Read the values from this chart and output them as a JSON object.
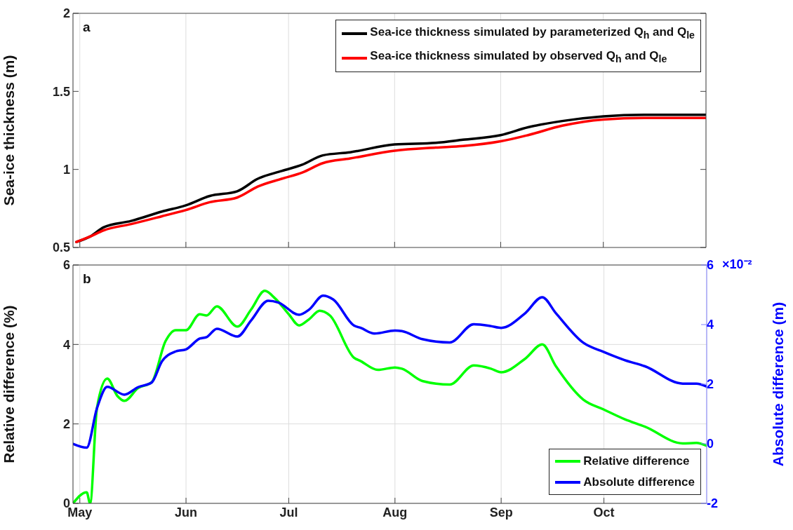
{
  "chart_data": [
    {
      "type": "line",
      "ylabel": "Sea-ice thickness (m)",
      "annotations": [
        "a"
      ],
      "xlim": [
        "--04-29",
        "--10-31"
      ],
      "xticks": [
        {
          "value": "--05-01",
          "label": null
        },
        {
          "value": "--06-01",
          "label": null
        },
        {
          "value": "--07-01",
          "label": null
        },
        {
          "value": "--08-01",
          "label": null
        },
        {
          "value": "--09-01",
          "label": null
        },
        {
          "value": "--10-01",
          "label": null
        }
      ],
      "ylim": [
        0.5,
        2
      ],
      "yticks": [
        0.5,
        1,
        1.5,
        2
      ],
      "grid": "x",
      "legend": "top right",
      "tick_labels": "y",
      "series": [
        {
          "name": "Sea-ice thickness simulated by parameterized Q$_{h}$ and Q$_{le}$",
          "color": "#000000",
          "x": [
            "--04-30",
            "--05-04",
            "--05-08",
            "--05-16",
            "--05-25",
            "--06-01",
            "--06-08",
            "--06-16",
            "--06-22",
            "--06-29",
            "--07-05",
            "--07-11",
            "--07-19",
            "--08-01",
            "--08-13",
            "--08-21",
            "--09-01",
            "--09-09",
            "--09-19",
            "--10-01",
            "--10-13",
            "--10-31"
          ],
          "values": [
            0.535,
            0.57,
            0.63,
            0.67,
            0.73,
            0.77,
            0.83,
            0.86,
            0.94,
            0.99,
            1.03,
            1.09,
            1.11,
            1.16,
            1.17,
            1.19,
            1.22,
            1.27,
            1.31,
            1.34,
            1.35,
            1.35
          ]
        },
        {
          "name": "Sea-ice thickness simulated by observed Q$_{h}$ and Q$_{le}$",
          "color": "#ff0000",
          "x": [
            "--04-30",
            "--05-04",
            "--05-08",
            "--05-16",
            "--05-25",
            "--06-01",
            "--06-08",
            "--06-16",
            "--06-22",
            "--06-29",
            "--07-05",
            "--07-11",
            "--07-19",
            "--08-01",
            "--08-13",
            "--08-21",
            "--09-01",
            "--09-09",
            "--09-19",
            "--10-01",
            "--10-13",
            "--10-31"
          ],
          "values": [
            0.535,
            0.57,
            0.61,
            0.65,
            0.7,
            0.74,
            0.79,
            0.82,
            0.89,
            0.94,
            0.98,
            1.04,
            1.07,
            1.12,
            1.14,
            1.15,
            1.18,
            1.22,
            1.28,
            1.32,
            1.33,
            1.33
          ]
        }
      ]
    },
    {
      "type": "line",
      "ylabel": "Relative difference (%)",
      "y2label": "Absolute difference (m)",
      "annotations": [
        "b",
        "×10⁻²"
      ],
      "xlim": [
        "--04-29",
        "--10-31"
      ],
      "xticks": [
        {
          "value": "--05-01",
          "label": "May"
        },
        {
          "value": "--06-01",
          "label": "Jun"
        },
        {
          "value": "--07-01",
          "label": "Jul"
        },
        {
          "value": "--08-01",
          "label": "Aug"
        },
        {
          "value": "--09-01",
          "label": "Sep"
        },
        {
          "value": "--10-01",
          "label": "Oct"
        }
      ],
      "ylim": [
        0,
        6
      ],
      "yticks": [
        0,
        2,
        4,
        6
      ],
      "y2lim": [
        -2,
        6
      ],
      "y2ticks": [
        -2,
        0,
        2,
        4,
        6
      ],
      "grid": true,
      "legend": "bottom right",
      "series": [
        {
          "name": "Relative difference",
          "color": "#00ff00",
          "x": [
            "--04-29",
            "--05-03",
            "--05-04",
            "--05-06",
            "--05-09",
            "--05-12",
            "--05-14",
            "--05-18",
            "--05-22",
            "--05-26",
            "--05-29",
            "--06-01",
            "--06-05",
            "--06-07",
            "--06-10",
            "--06-16",
            "--06-20",
            "--06-24",
            "--06-27",
            "--07-01",
            "--07-04",
            "--07-07",
            "--07-10",
            "--07-13",
            "--07-20",
            "--07-22",
            "--07-27",
            "--08-01",
            "--08-03",
            "--08-09",
            "--08-17",
            "--08-24",
            "--08-29",
            "--09-01",
            "--09-08",
            "--09-13",
            "--09-17",
            "--09-25",
            "--10-01",
            "--10-07",
            "--10-13",
            "--10-24",
            "--10-28",
            "--10-31"
          ],
          "values": [
            0,
            0.28,
            0,
            2.4,
            3.14,
            2.7,
            2.58,
            2.9,
            3.05,
            4.08,
            4.36,
            4.36,
            4.76,
            4.73,
            4.96,
            4.45,
            4.88,
            5.35,
            5.16,
            4.76,
            4.48,
            4.64,
            4.85,
            4.73,
            3.67,
            3.58,
            3.36,
            3.42,
            3.39,
            3.08,
            2.99,
            3.47,
            3.39,
            3.3,
            3.64,
            4.0,
            3.45,
            2.61,
            2.36,
            2.12,
            1.93,
            1.51,
            1.52,
            1.45
          ]
        },
        {
          "name": "Absolute difference",
          "color": "#0000ff",
          "axis": "y2",
          "x": [
            "--04-29",
            "--05-03",
            "--05-06",
            "--05-09",
            "--05-14",
            "--05-18",
            "--05-22",
            "--05-25",
            "--05-29",
            "--06-01",
            "--06-05",
            "--06-07",
            "--06-10",
            "--06-16",
            "--06-20",
            "--06-25",
            "--06-28",
            "--07-04",
            "--07-07",
            "--07-11",
            "--07-14",
            "--07-20",
            "--07-22",
            "--07-26",
            "--08-01",
            "--08-03",
            "--08-09",
            "--08-17",
            "--08-24",
            "--08-29",
            "--09-01",
            "--09-08",
            "--09-13",
            "--09-17",
            "--09-25",
            "--10-01",
            "--10-07",
            "--10-13",
            "--10-24",
            "--10-28",
            "--10-31"
          ],
          "values": [
            0,
            -0.13,
            1.19,
            1.91,
            1.65,
            1.9,
            2.06,
            2.77,
            3.1,
            3.17,
            3.53,
            3.58,
            3.86,
            3.6,
            4.14,
            4.8,
            4.74,
            4.33,
            4.51,
            4.97,
            4.84,
            3.97,
            3.89,
            3.7,
            3.8,
            3.78,
            3.51,
            3.4,
            4.01,
            3.95,
            3.89,
            4.38,
            4.92,
            4.38,
            3.39,
            3.08,
            2.81,
            2.6,
            2.02,
            2.02,
            1.92
          ]
        }
      ]
    }
  ]
}
